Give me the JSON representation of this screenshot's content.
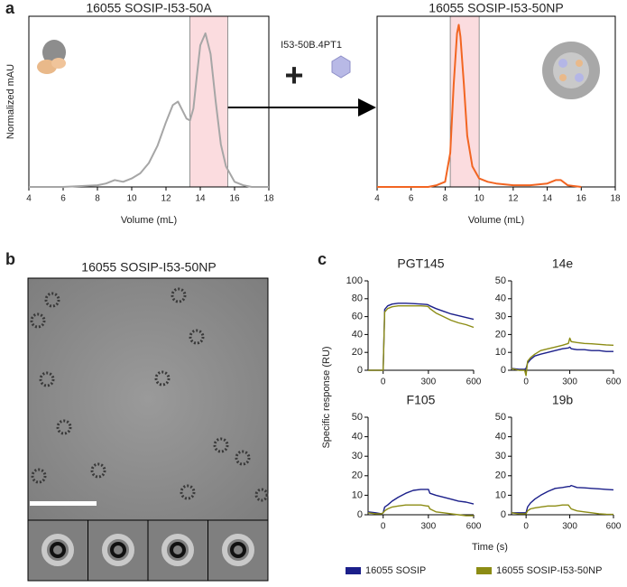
{
  "panel_labels": [
    "a",
    "b",
    "c"
  ],
  "annotation": "I53-50B.4PT1",
  "panel_b": {
    "title": "16055 SOSIP-I53-50NP"
  },
  "panel_c": {
    "ylabel": "Specific response (RU)",
    "xlabel": "Time (s)"
  },
  "chart_data": [
    {
      "type": "line",
      "title": "16055 SOSIP-I53-50A",
      "xlabel": "Volume (mL)",
      "ylabel": "Normalized mAU",
      "frame": "box",
      "xlim": [
        4,
        18
      ],
      "xticks": [
        4,
        6,
        8,
        10,
        12,
        14,
        16,
        18
      ],
      "ylim": [
        0,
        1
      ],
      "highlight": [
        13.4,
        15.6
      ],
      "x": [
        4,
        6,
        8,
        8.5,
        9,
        9.5,
        10,
        10.5,
        11,
        11.5,
        12,
        12.4,
        12.7,
        13,
        13.2,
        13.4,
        13.6,
        13.8,
        14,
        14.3,
        14.6,
        14.9,
        15.2,
        15.5,
        16,
        16.5,
        17,
        18
      ],
      "series": [
        {
          "color": "#a6a6a6",
          "values": [
            0,
            0,
            0.01,
            0.02,
            0.04,
            0.03,
            0.05,
            0.08,
            0.14,
            0.24,
            0.38,
            0.48,
            0.5,
            0.44,
            0.4,
            0.39,
            0.46,
            0.65,
            0.83,
            0.9,
            0.78,
            0.5,
            0.25,
            0.12,
            0.03,
            0.01,
            0,
            0
          ]
        }
      ]
    },
    {
      "type": "line",
      "title": "16055 SOSIP-I53-50NP",
      "xlabel": "Volume (mL)",
      "frame": "box",
      "xlim": [
        4,
        18
      ],
      "xticks": [
        4,
        6,
        8,
        10,
        12,
        14,
        16,
        18
      ],
      "ylim": [
        0,
        1
      ],
      "highlight": [
        8.3,
        10
      ],
      "x": [
        4,
        6,
        7,
        7.5,
        8,
        8.3,
        8.5,
        8.7,
        8.8,
        8.9,
        9.1,
        9.3,
        9.6,
        10,
        10.5,
        11,
        12,
        13,
        14,
        14.5,
        14.8,
        15.2,
        16
      ],
      "series": [
        {
          "color": "#f26522",
          "values": [
            0,
            0,
            0,
            0.01,
            0.03,
            0.2,
            0.6,
            0.9,
            0.95,
            0.88,
            0.6,
            0.3,
            0.12,
            0.05,
            0.03,
            0.02,
            0.01,
            0.01,
            0.02,
            0.04,
            0.04,
            0.01,
            0
          ]
        }
      ]
    },
    {
      "type": "line",
      "title": "PGT145",
      "frame": "axes",
      "xlim": [
        -100,
        600
      ],
      "xticks": [
        0,
        300,
        600
      ],
      "ylim": [
        0,
        100
      ],
      "yticks": [
        0,
        20,
        40,
        60,
        80,
        100
      ],
      "x": [
        -100,
        -50,
        -10,
        0,
        10,
        30,
        60,
        100,
        150,
        200,
        250,
        290,
        300,
        310,
        350,
        400,
        450,
        500,
        550,
        600
      ],
      "series": [
        {
          "name": "16055 SOSIP",
          "color": "#1b1f8a",
          "values": [
            0,
            0,
            0,
            0,
            68,
            72,
            74,
            75,
            75,
            74.5,
            74,
            73.5,
            73,
            72,
            69,
            66,
            63,
            61,
            59,
            57
          ]
        },
        {
          "name": "16055 SOSIP-I53-50NP",
          "color": "#8c8c14",
          "values": [
            0,
            0,
            0,
            0,
            65,
            69,
            71,
            72,
            72,
            72,
            72,
            71.5,
            71,
            69,
            64,
            60,
            56,
            53,
            51,
            48
          ]
        }
      ]
    },
    {
      "type": "line",
      "title": "14e",
      "frame": "axes",
      "xlim": [
        -100,
        600
      ],
      "xticks": [
        0,
        300,
        600
      ],
      "ylim": [
        0,
        50
      ],
      "yticks": [
        0,
        10,
        20,
        30,
        40,
        50
      ],
      "x": [
        -100,
        -50,
        -10,
        0,
        10,
        30,
        60,
        100,
        150,
        200,
        250,
        290,
        300,
        310,
        350,
        400,
        450,
        500,
        550,
        600
      ],
      "series": [
        {
          "color": "#1b1f8a",
          "values": [
            1,
            0.5,
            0.5,
            1,
            4,
            6,
            8,
            9,
            10,
            11,
            12,
            12.5,
            13,
            12,
            11.5,
            11.5,
            11,
            11,
            10.5,
            10.5
          ]
        },
        {
          "color": "#8c8c14",
          "values": [
            1,
            0,
            0,
            -3,
            5,
            7,
            9,
            11,
            12,
            13,
            14,
            15,
            18,
            16,
            15.5,
            15,
            14.8,
            14.5,
            14.2,
            14
          ]
        }
      ]
    },
    {
      "type": "line",
      "title": "F105",
      "frame": "axes",
      "xlim": [
        -100,
        600
      ],
      "xticks": [
        0,
        300,
        600
      ],
      "ylim": [
        0,
        50
      ],
      "yticks": [
        0,
        10,
        20,
        30,
        40,
        50
      ],
      "x": [
        -100,
        -50,
        -10,
        0,
        10,
        30,
        60,
        100,
        150,
        200,
        250,
        290,
        300,
        310,
        350,
        400,
        450,
        500,
        550,
        600
      ],
      "series": [
        {
          "color": "#1b1f8a",
          "values": [
            1.5,
            1,
            0.5,
            1,
            4,
            5,
            7,
            9,
            11,
            12.5,
            13,
            13,
            13,
            11,
            10,
            9,
            8,
            7,
            6.5,
            5.5
          ]
        },
        {
          "color": "#8c8c14",
          "values": [
            1,
            0.5,
            0.5,
            1,
            2,
            3,
            4,
            4.5,
            5,
            5,
            5,
            4.5,
            4.5,
            3,
            1.5,
            1,
            0.5,
            0,
            -0.5,
            -0.5
          ]
        }
      ]
    },
    {
      "type": "line",
      "title": "19b",
      "frame": "axes",
      "xlim": [
        -100,
        600
      ],
      "xticks": [
        0,
        300,
        600
      ],
      "ylim": [
        0,
        50
      ],
      "yticks": [
        0,
        10,
        20,
        30,
        40,
        50
      ],
      "x": [
        -100,
        -50,
        -10,
        0,
        10,
        30,
        60,
        100,
        150,
        200,
        250,
        290,
        300,
        310,
        350,
        400,
        450,
        500,
        550,
        600
      ],
      "series": [
        {
          "color": "#1b1f8a",
          "values": [
            1,
            1,
            1,
            1,
            4,
            6,
            8,
            10,
            12,
            13.5,
            14,
            14.5,
            14.5,
            15,
            14,
            13.8,
            13.5,
            13.3,
            13,
            12.8
          ]
        },
        {
          "color": "#8c8c14",
          "values": [
            1,
            0.5,
            0.5,
            0.5,
            2,
            3,
            3.5,
            4,
            4.5,
            4.5,
            5,
            5,
            4,
            3,
            2,
            1.5,
            1,
            0.5,
            0.3,
            0.2
          ]
        }
      ]
    }
  ]
}
